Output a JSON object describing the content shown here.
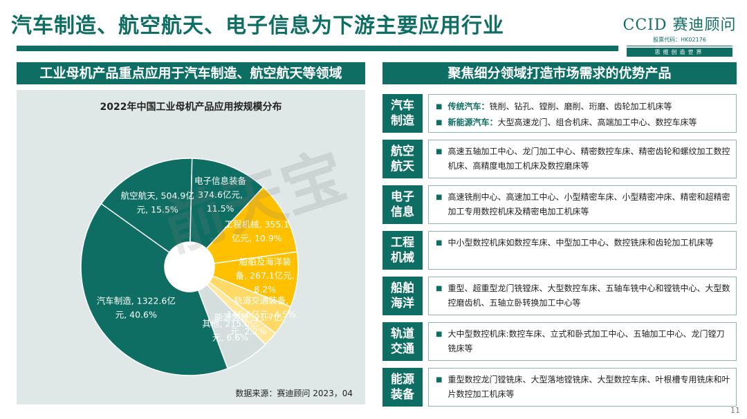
{
  "header": {
    "title": "汽车制造、航空航天、电子信息为下游主要应用行业",
    "brand_name": "CCID 赛迪顾问",
    "brand_code": "股票代码：HK02176",
    "brand_slogan": "思维创造世界"
  },
  "left_panel": {
    "heading": "工业母机产品重点应用于汽车制造、航空航天等领域",
    "source": "数据来源：赛迪顾问  2023，04"
  },
  "right_panel": {
    "heading": "聚焦细分领域打造市场需求的优势产品",
    "rows": [
      {
        "label": "汽车制造",
        "items": [
          {
            "key": "传统汽车：",
            "text": "铣削、钻孔、镗削、磨削、珩磨、齿轮加工机床等"
          },
          {
            "key": "新能源汽车：",
            "text": "大型高速龙门、组合机床、高端加工中心、数控车床等"
          }
        ]
      },
      {
        "label": "航空航天",
        "text": "高速五轴加工中心、龙门加工中心、精密数控车床、精密齿轮和螺纹加工数控机床、高精度电加工机床及数控磨床等"
      },
      {
        "label": "电子信息",
        "text": "高速铣削中心、高速加工中心、小型精密车床、小型精密冲床、精密和超精密加工专用数控机床及精密电加工机床等"
      },
      {
        "label": "工程机械",
        "text": "中小型数控机床如数控车床、中型加工中心、数控铣床和齿轮加工机床等"
      },
      {
        "label": "船舶海洋",
        "text": "重型、超重型龙门铣镗床、大型数控车床、五轴车铣中心和镗铣中心、大型数控磨齿机、五轴立卧转换加工中心等"
      },
      {
        "label": "轨道交通",
        "text": "大中型数控机床:数控车床、立式和卧式加工中心、五轴加工中心、龙门镗刀铣床等"
      },
      {
        "label": "能源装备",
        "text": "重型数控龙门镗铣床、大型落地镗铣床、大型数控车床、叶根槽专用铣床和叶片数控加工机床等"
      }
    ]
  },
  "page_number": "11",
  "watermark_text": "前天宝 数据 报告",
  "colors": {
    "accent": "#0f6e63",
    "panel_bg": "#dfe8e7",
    "teal_dark": "#0f6e63",
    "teal_mid": "#138a78",
    "gold": "#ffc000",
    "gold_light": "#ffd966",
    "gold_pale": "#ffe699",
    "grey_light": "#d3dedd"
  },
  "chart_data": {
    "type": "pie",
    "title": "2022年中国工业母机产品应用按规模分布",
    "unit": "亿元",
    "categories": [
      "汽车制造",
      "航空航天",
      "电子信息装备",
      "工程机械",
      "船舶及海洋装备",
      "轨道交通装备",
      "能源装备",
      "其他"
    ],
    "values": [
      1322.6,
      504.9,
      374.6,
      355.1,
      267.1,
      146.6,
      71.7,
      215.0
    ],
    "percents": [
      40.6,
      15.5,
      11.5,
      10.9,
      8.2,
      4.5,
      2.2,
      6.6
    ],
    "labels": [
      [
        "汽车制造, 1322.6亿",
        "元, 40.6%"
      ],
      [
        "航空航天, 504.9亿",
        "元, 15.5%"
      ],
      [
        "电子信息装备",
        "374.6亿元,",
        "11.5%"
      ],
      [
        "工程机械, 355.1",
        "亿元, 10.9%"
      ],
      [
        "船舶及海洋装",
        "备, 267.1亿元,",
        "8.2%"
      ],
      [
        "轨道交通装备,",
        "146.6亿元, 4.5%"
      ],
      [
        "能源装备, 71.7亿",
        "元, 2.2%"
      ],
      [
        "其他, 215.0亿",
        "元, 6.6%"
      ]
    ],
    "colors": [
      "#0f6e63",
      "#0f6e63",
      "#0f6e63",
      "#ffc000",
      "#ffc000",
      "#ffd966",
      "#ffe699",
      "#d3dedd"
    ],
    "label_colors": [
      "#ffffff",
      "#ffffff",
      "#ffffff",
      "#ffffff",
      "#ffffff",
      "#ffffff",
      "#ffffff",
      "#ffffff"
    ],
    "legend": "none"
  }
}
